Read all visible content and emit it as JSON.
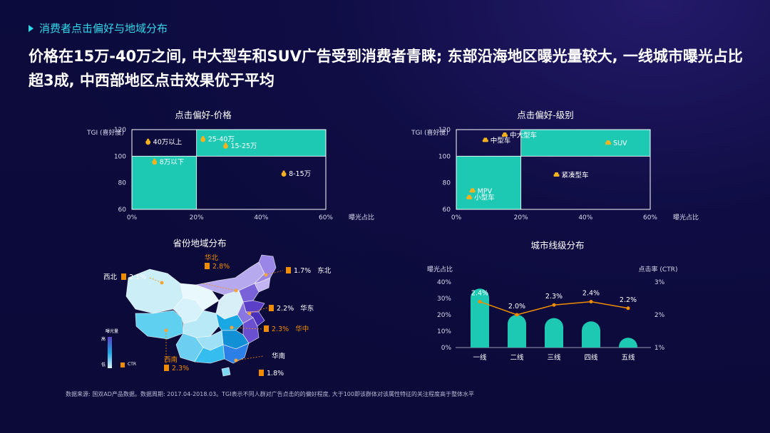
{
  "section_title": "消费者点击偏好与地域分布",
  "headline": "价格在15万-40万之间, 中大型车和SUV广告受到消费者青睐; 东部沿海地区曝光量较大, 一线城市曝光占比超3成, 中西部地区点击效果优于平均",
  "colors": {
    "accent": "#2fd9e8",
    "teal": "#1ec9b4",
    "orange": "#f08c00",
    "purple": "#6b4fcf",
    "bg": "#0c0b3d"
  },
  "chart_data": [
    {
      "type": "scatter",
      "title": "点击偏好-价格",
      "xlabel": "曝光占比",
      "ylabel": "TGI (喜好度)",
      "xlim": [
        0,
        60
      ],
      "ylim": [
        60,
        120
      ],
      "xticks": [
        "0%",
        "20%",
        "40%",
        "60%"
      ],
      "yticks": [
        "60",
        "80",
        "100",
        "120"
      ],
      "divider": {
        "x": 20,
        "y": 100
      },
      "icon": "money-bag-icon",
      "points": [
        {
          "label": "40万以上",
          "x": 5,
          "y": 111
        },
        {
          "label": "25-40万",
          "x": 22,
          "y": 113
        },
        {
          "label": "15-25万",
          "x": 29,
          "y": 108
        },
        {
          "label": "8万以下",
          "x": 7,
          "y": 96
        },
        {
          "label": "8-15万",
          "x": 47,
          "y": 87
        }
      ]
    },
    {
      "type": "scatter",
      "title": "点击偏好-级别",
      "xlabel": "曝光占比",
      "ylabel": "TGI (喜好度)",
      "xlim": [
        0,
        60
      ],
      "ylim": [
        60,
        120
      ],
      "xticks": [
        "0%",
        "20%",
        "40%",
        "60%"
      ],
      "yticks": [
        "60",
        "80",
        "100",
        "120"
      ],
      "divider": {
        "x": 20,
        "y": 100
      },
      "icon": "car-icon",
      "points": [
        {
          "label": "中大型车",
          "x": 15,
          "y": 116
        },
        {
          "label": "中型车",
          "x": 9,
          "y": 112
        },
        {
          "label": "SUV",
          "x": 47,
          "y": 110
        },
        {
          "label": "紧凑型车",
          "x": 31,
          "y": 86
        },
        {
          "label": "MPV",
          "x": 5,
          "y": 74
        },
        {
          "label": "小型车",
          "x": 4,
          "y": 69
        }
      ]
    },
    {
      "type": "map",
      "title": "省份地域分布",
      "legend_title": "曝光量",
      "legend_high": "高",
      "legend_low": "低",
      "legend_ctr": "CTR",
      "regions": [
        {
          "name": "西北",
          "ctr": "2.1%"
        },
        {
          "name": "华北",
          "ctr": "2.8%"
        },
        {
          "name": "东北",
          "ctr": "1.7%"
        },
        {
          "name": "华东",
          "ctr": "2.2%"
        },
        {
          "name": "华中",
          "ctr": "2.3%"
        },
        {
          "name": "华南",
          "ctr": "1.8%"
        },
        {
          "name": "西南",
          "ctr": "2.3%"
        }
      ]
    },
    {
      "type": "bar",
      "title": "城市线级分布",
      "ylabel": "曝光占比",
      "y2label": "点击率 (CTR)",
      "categories": [
        "一线",
        "二线",
        "三线",
        "四线",
        "五线"
      ],
      "yticks": [
        "0%",
        "10%",
        "20%",
        "30%",
        "40%"
      ],
      "y2ticks": [
        "1%",
        "2%",
        "3%"
      ],
      "ylim": [
        0,
        40
      ],
      "y2lim": [
        1,
        3
      ],
      "series": [
        {
          "values": [
            36,
            20,
            18,
            16,
            6
          ]
        },
        {
          "values": [
            2.4,
            2.0,
            2.3,
            2.4,
            2.2
          ],
          "labels": [
            "2.4%",
            "2.0%",
            "2.3%",
            "2.4%",
            "2.2%"
          ]
        }
      ]
    }
  ],
  "footnote": "数据来源: 国双AD产品数据。数据周期: 2017.04-2018.03。TGI表示不同人群对广告点击的的偏好程度, 大于100即该群体对该属性特征的关注程度高于整体水平"
}
